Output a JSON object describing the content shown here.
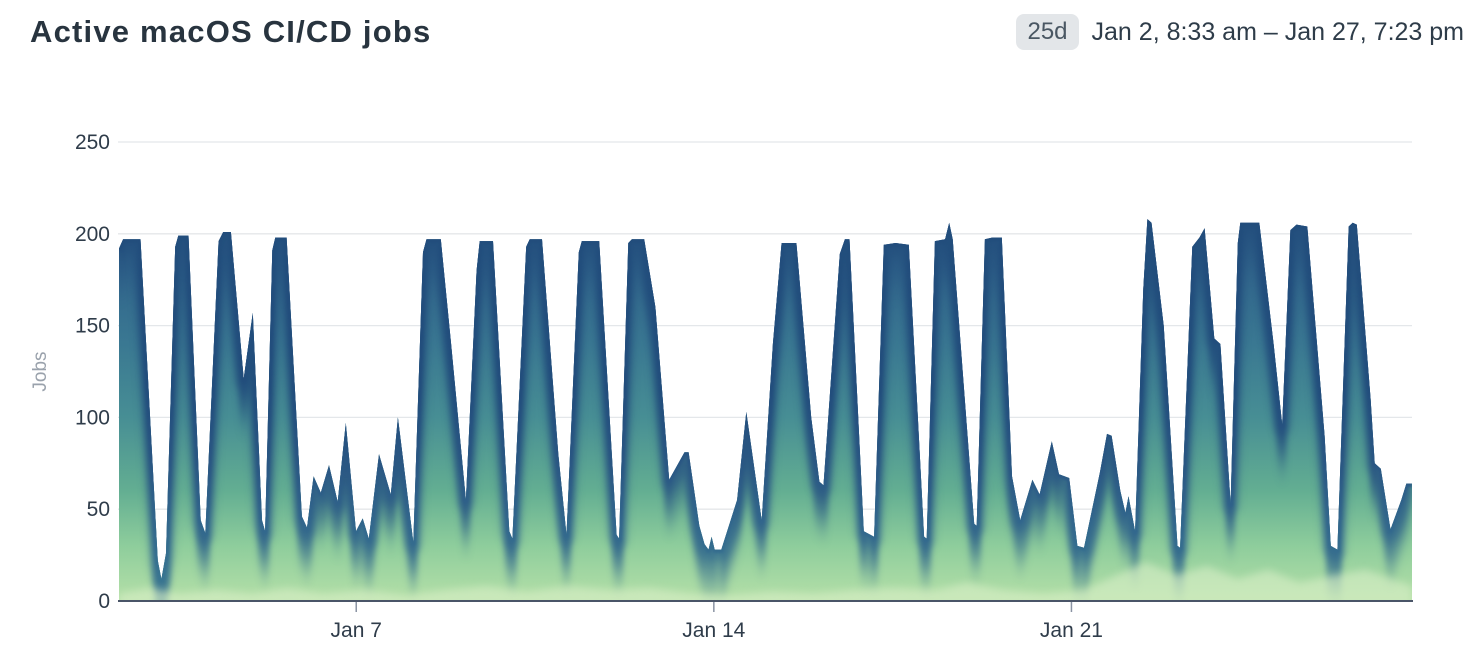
{
  "header": {
    "title": "Active macOS CI/CD jobs",
    "duration_badge": "25d",
    "range_text": "Jan 2, 8:33 am – Jan 27, 7:23 pm"
  },
  "chart_data": {
    "type": "area",
    "title": "Active macOS CI/CD jobs",
    "ylabel": "Jobs",
    "ylim": [
      0,
      250
    ],
    "yticks": [
      0,
      50,
      100,
      150,
      200,
      250
    ],
    "x_unit": "days since Jan 2, 8:33 am",
    "x_range": [
      0,
      25.31
    ],
    "grid": true,
    "legend": false,
    "xticks": [
      {
        "day": 4.6437,
        "label": "Jan 7"
      },
      {
        "day": 11.6437,
        "label": "Jan 14"
      },
      {
        "day": 18.6437,
        "label": "Jan 21"
      }
    ],
    "series": [
      {
        "name": "Jobs",
        "points": [
          [
            0,
            192
          ],
          [
            0.08,
            197
          ],
          [
            0.42,
            197
          ],
          [
            0.76,
            22
          ],
          [
            0.83,
            12
          ],
          [
            0.92,
            26
          ],
          [
            1.1,
            193
          ],
          [
            1.16,
            199
          ],
          [
            1.36,
            199
          ],
          [
            1.6,
            44
          ],
          [
            1.69,
            37
          ],
          [
            1.95,
            196
          ],
          [
            2.04,
            201
          ],
          [
            2.19,
            201
          ],
          [
            2.44,
            121
          ],
          [
            2.62,
            157
          ],
          [
            2.8,
            44
          ],
          [
            2.86,
            38
          ],
          [
            3.0,
            191
          ],
          [
            3.06,
            198
          ],
          [
            3.28,
            198
          ],
          [
            3.58,
            46
          ],
          [
            3.68,
            40
          ],
          [
            3.81,
            68
          ],
          [
            3.95,
            59
          ],
          [
            4.11,
            74
          ],
          [
            4.28,
            54
          ],
          [
            4.44,
            97
          ],
          [
            4.64,
            38
          ],
          [
            4.77,
            45
          ],
          [
            4.89,
            34
          ],
          [
            5.09,
            80
          ],
          [
            5.32,
            58
          ],
          [
            5.46,
            100
          ],
          [
            5.76,
            32
          ],
          [
            5.95,
            190
          ],
          [
            6.02,
            197
          ],
          [
            6.3,
            197
          ],
          [
            6.5,
            140
          ],
          [
            6.79,
            55
          ],
          [
            7.0,
            180
          ],
          [
            7.06,
            196
          ],
          [
            7.32,
            196
          ],
          [
            7.64,
            38
          ],
          [
            7.7,
            34
          ],
          [
            7.97,
            193
          ],
          [
            8.04,
            197
          ],
          [
            8.28,
            197
          ],
          [
            8.6,
            80
          ],
          [
            8.76,
            36
          ],
          [
            9.0,
            190
          ],
          [
            9.06,
            196
          ],
          [
            9.4,
            196
          ],
          [
            9.74,
            36
          ],
          [
            9.79,
            34
          ],
          [
            9.97,
            195
          ],
          [
            10.04,
            197
          ],
          [
            10.28,
            197
          ],
          [
            10.5,
            160
          ],
          [
            10.77,
            66
          ],
          [
            11.07,
            81
          ],
          [
            11.15,
            81
          ],
          [
            11.36,
            41
          ],
          [
            11.46,
            31
          ],
          [
            11.54,
            28
          ],
          [
            11.6,
            35
          ],
          [
            11.66,
            28
          ],
          [
            11.79,
            28
          ],
          [
            12.1,
            55
          ],
          [
            12.28,
            103
          ],
          [
            12.58,
            44
          ],
          [
            12.8,
            140
          ],
          [
            12.97,
            195
          ],
          [
            13.26,
            195
          ],
          [
            13.55,
            100
          ],
          [
            13.71,
            65
          ],
          [
            13.79,
            63
          ],
          [
            14.11,
            189
          ],
          [
            14.21,
            197
          ],
          [
            14.3,
            197
          ],
          [
            14.58,
            38
          ],
          [
            14.78,
            35
          ],
          [
            14.97,
            194
          ],
          [
            15.2,
            195
          ],
          [
            15.46,
            194
          ],
          [
            15.76,
            35
          ],
          [
            15.81,
            34
          ],
          [
            15.97,
            196
          ],
          [
            16.17,
            197
          ],
          [
            16.25,
            206
          ],
          [
            16.32,
            197
          ],
          [
            16.74,
            42
          ],
          [
            16.79,
            41
          ],
          [
            16.95,
            197
          ],
          [
            17.1,
            198
          ],
          [
            17.28,
            198
          ],
          [
            17.48,
            68
          ],
          [
            17.64,
            44
          ],
          [
            17.88,
            66
          ],
          [
            18.02,
            58
          ],
          [
            18.26,
            87
          ],
          [
            18.4,
            69
          ],
          [
            18.6,
            67
          ],
          [
            18.76,
            30
          ],
          [
            18.89,
            29
          ],
          [
            19.2,
            70
          ],
          [
            19.34,
            91
          ],
          [
            19.43,
            90
          ],
          [
            19.6,
            60
          ],
          [
            19.7,
            48
          ],
          [
            19.76,
            57
          ],
          [
            19.89,
            38
          ],
          [
            20.05,
            170
          ],
          [
            20.13,
            208
          ],
          [
            20.21,
            206
          ],
          [
            20.45,
            150
          ],
          [
            20.72,
            30
          ],
          [
            20.77,
            29
          ],
          [
            21.01,
            193
          ],
          [
            21.15,
            198
          ],
          [
            21.25,
            203
          ],
          [
            21.44,
            143
          ],
          [
            21.56,
            140
          ],
          [
            21.76,
            53
          ],
          [
            21.9,
            195
          ],
          [
            21.95,
            206
          ],
          [
            22.32,
            206
          ],
          [
            22.6,
            140
          ],
          [
            22.77,
            96
          ],
          [
            22.93,
            202
          ],
          [
            23.05,
            205
          ],
          [
            23.26,
            204
          ],
          [
            23.6,
            90
          ],
          [
            23.72,
            30
          ],
          [
            23.85,
            28
          ],
          [
            24.07,
            204
          ],
          [
            24.15,
            206
          ],
          [
            24.23,
            205
          ],
          [
            24.5,
            110
          ],
          [
            24.58,
            75
          ],
          [
            24.7,
            72
          ],
          [
            24.89,
            39
          ],
          [
            25.1,
            55
          ],
          [
            25.2,
            64
          ],
          [
            25.31,
            64
          ]
        ]
      }
    ],
    "baseline_overlay": {
      "name": "low-band highlight",
      "points": [
        [
          0,
          4
        ],
        [
          0.6,
          7
        ],
        [
          1.2,
          4
        ],
        [
          1.9,
          6
        ],
        [
          2.6,
          4
        ],
        [
          3.3,
          7
        ],
        [
          4.0,
          4
        ],
        [
          4.8,
          6
        ],
        [
          5.6,
          3
        ],
        [
          6.4,
          6
        ],
        [
          7.2,
          8
        ],
        [
          8.0,
          5
        ],
        [
          8.8,
          8
        ],
        [
          9.6,
          6
        ],
        [
          10.4,
          7
        ],
        [
          11.2,
          4
        ],
        [
          12.0,
          3
        ],
        [
          12.8,
          5
        ],
        [
          13.6,
          4
        ],
        [
          14.4,
          6
        ],
        [
          15.2,
          7
        ],
        [
          16.0,
          6
        ],
        [
          16.6,
          10
        ],
        [
          17.3,
          6
        ],
        [
          18.1,
          4
        ],
        [
          18.9,
          6
        ],
        [
          19.6,
          15
        ],
        [
          20.1,
          21
        ],
        [
          20.7,
          14
        ],
        [
          21.3,
          19
        ],
        [
          21.9,
          12
        ],
        [
          22.5,
          17
        ],
        [
          23.1,
          10
        ],
        [
          23.8,
          14
        ],
        [
          24.4,
          17
        ],
        [
          24.9,
          12
        ],
        [
          25.31,
          8
        ]
      ]
    },
    "colors": {
      "gradient": [
        {
          "value": 0,
          "color": "#b5e0a8"
        },
        {
          "value": 30,
          "color": "#8ecd9c"
        },
        {
          "value": 60,
          "color": "#63ae92"
        },
        {
          "value": 100,
          "color": "#478e94"
        },
        {
          "value": 140,
          "color": "#3a7892"
        },
        {
          "value": 180,
          "color": "#31658c"
        },
        {
          "value": 210,
          "color": "#2a5683"
        },
        {
          "value": 250,
          "color": "#224d7c"
        }
      ],
      "edge_glow_shift_units": 135,
      "overlay": "#ddf0ca",
      "axis_line": "#4a5568",
      "grid_line": "#e4e7ea",
      "tick_label": "#2f3c4a",
      "axis_title": "#9aa2ac"
    }
  }
}
